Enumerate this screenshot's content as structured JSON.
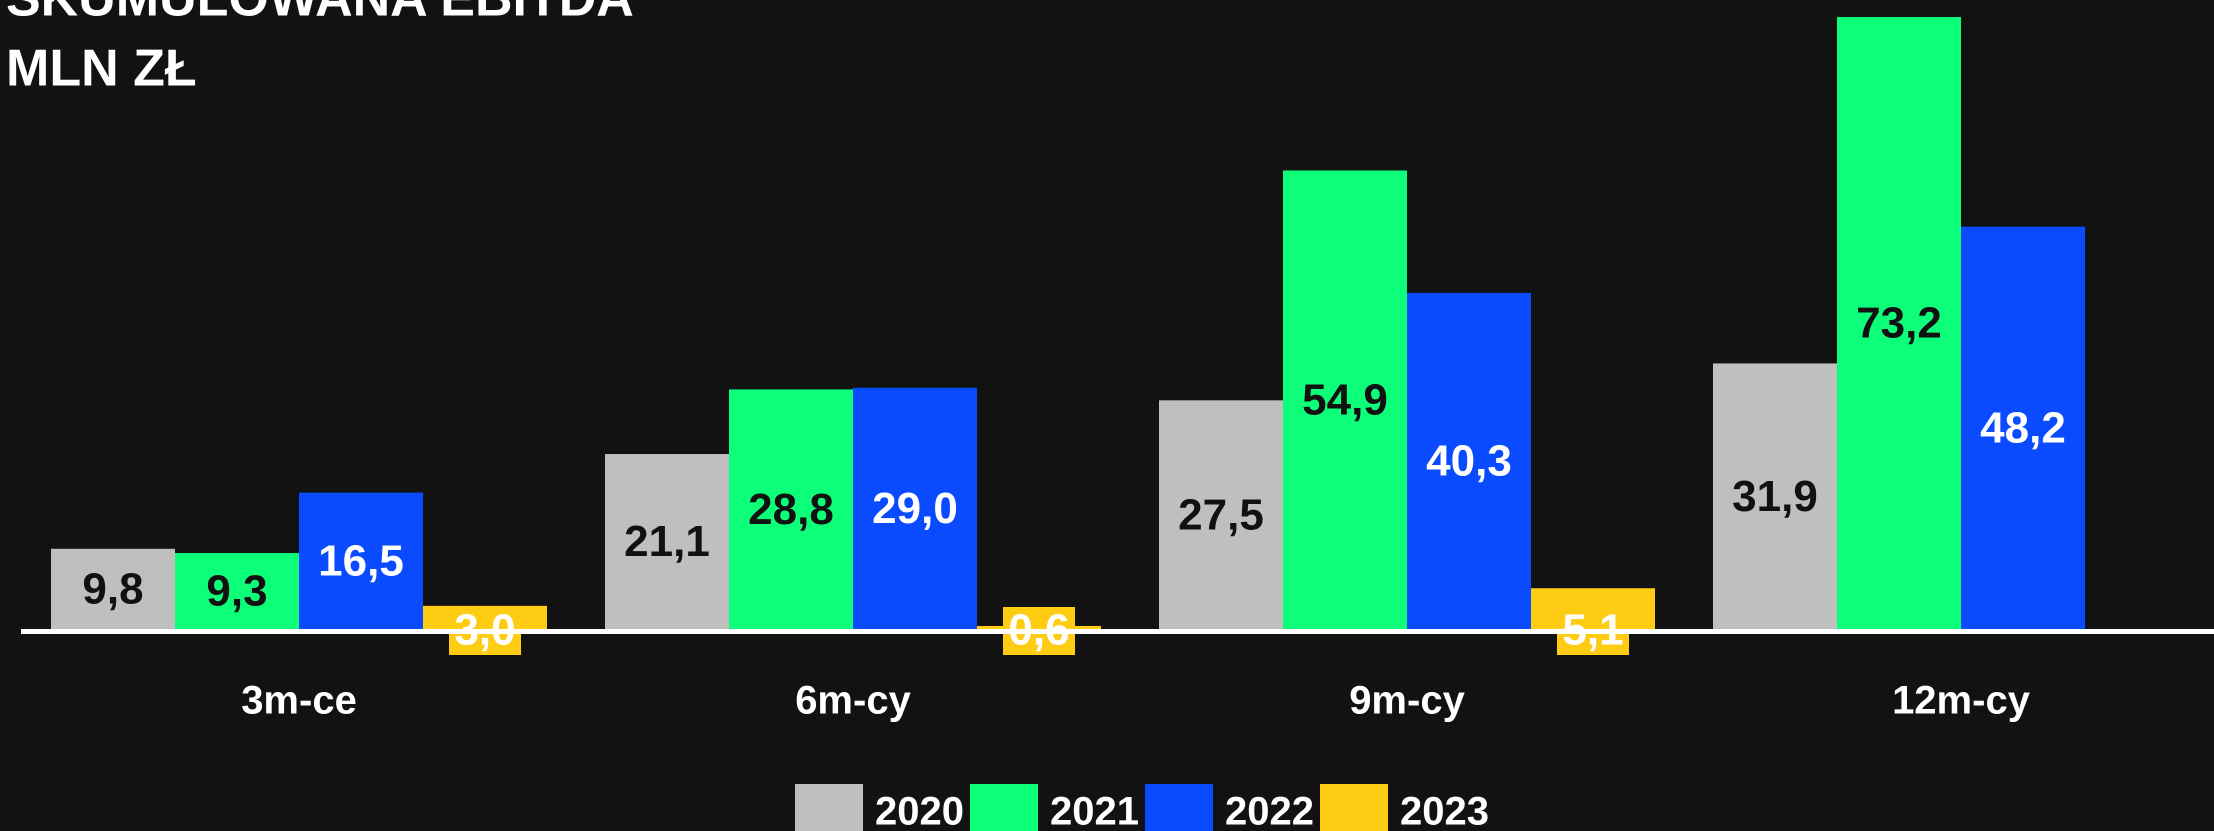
{
  "chart_data": {
    "type": "bar",
    "title": "SKUMULOWANA EBITDA",
    "subtitle": "MLN ZŁ",
    "categories": [
      "3m-ce",
      "6m-cy",
      "9m-cy",
      "12m-cy"
    ],
    "series": [
      {
        "name": "2020",
        "color": "#bfbfbf",
        "values": [
          9.8,
          21.1,
          27.5,
          31.9
        ],
        "value_labels": [
          "9,8",
          "21,1",
          "27,5",
          "31,9"
        ],
        "label_color": "#111111"
      },
      {
        "name": "2021",
        "color": "#0dff7a",
        "values": [
          9.3,
          28.8,
          54.9,
          73.2
        ],
        "value_labels": [
          "9,3",
          "28,8",
          "54,9",
          "73,2"
        ],
        "label_color": "#111111"
      },
      {
        "name": "2022",
        "color": "#0a4bff",
        "values": [
          16.5,
          29.0,
          40.3,
          48.2
        ],
        "value_labels": [
          "16,5",
          "29,0",
          "40,3",
          "48,2"
        ],
        "label_color": "#ffffff"
      },
      {
        "name": "2023",
        "color": "#ffcc14",
        "values": [
          3.0,
          0.6,
          5.1,
          null
        ],
        "value_labels": [
          "3,0",
          "0,6",
          "5,1",
          null
        ],
        "label_color": "#ffffff"
      }
    ]
  }
}
